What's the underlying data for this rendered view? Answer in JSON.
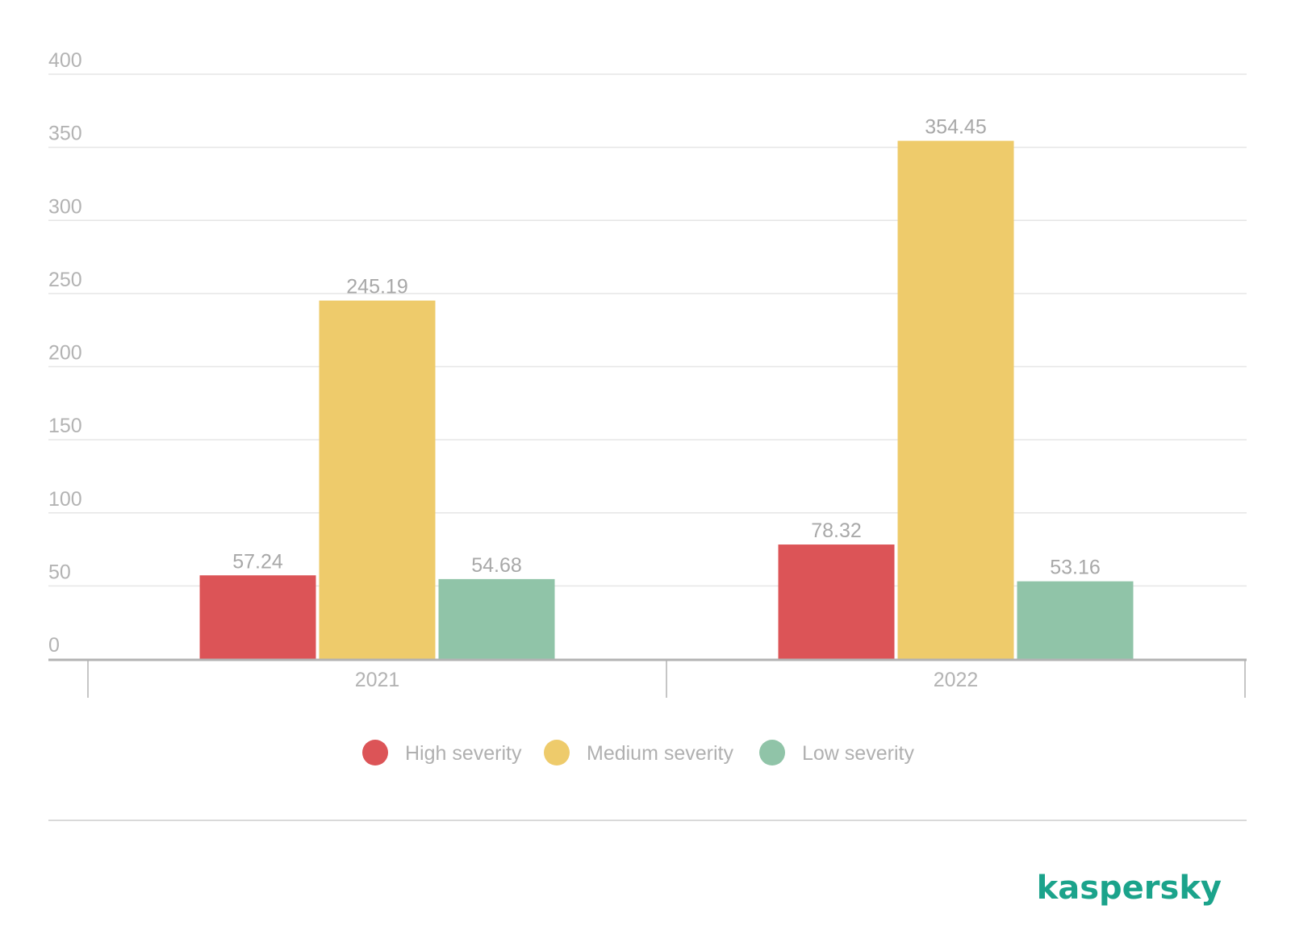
{
  "chart_data": {
    "type": "bar",
    "categories": [
      "2021",
      "2022"
    ],
    "series": [
      {
        "name": "High severity",
        "values": [
          57.24,
          78.32
        ],
        "color": "#dc5457"
      },
      {
        "name": "Medium severity",
        "values": [
          245.19,
          354.45
        ],
        "color": "#eecb6b"
      },
      {
        "name": "Low severity",
        "values": [
          54.68,
          53.16
        ],
        "color": "#90c4a8"
      }
    ],
    "value_labels": [
      [
        "57.24",
        "78.32"
      ],
      [
        "245.19",
        "354.45"
      ],
      [
        "54.68",
        "53.16"
      ]
    ],
    "y_ticks": [
      "0",
      "50",
      "100",
      "150",
      "200",
      "250",
      "300",
      "350",
      "400"
    ],
    "ylim": [
      0,
      400
    ],
    "grid": true,
    "legend_position": "bottom-center",
    "title": "",
    "xlabel": "",
    "ylabel": ""
  },
  "brand": {
    "name": "kaspersky",
    "color": "#1ba38b"
  }
}
